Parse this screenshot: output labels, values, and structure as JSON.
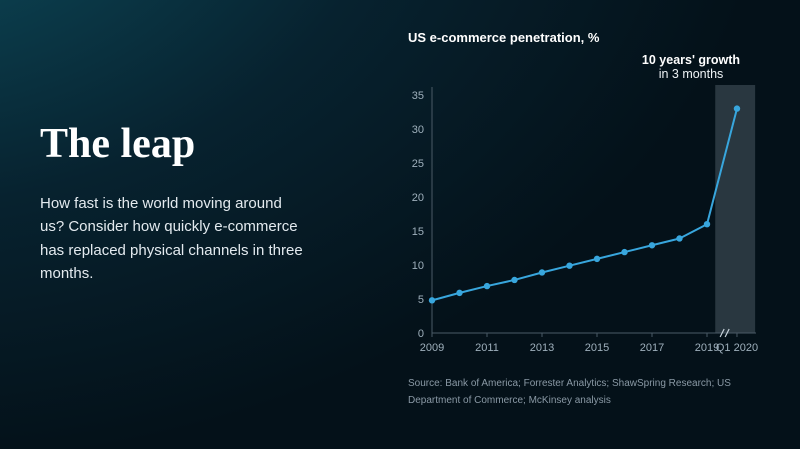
{
  "slide": {
    "title": "The leap",
    "body": "How fast is the world moving around us? Consider how quickly e-commerce has replaced physical channels in three months.",
    "source": "Source: Bank of America; Forrester Analytics; ShawSpring Research; US Department of Commerce; McKinsey analysis"
  },
  "chart": {
    "title": "US e-commerce penetration, %",
    "annotation_line1": "10 years' growth",
    "annotation_line2": "in 3 months"
  },
  "chart_data": {
    "type": "line",
    "title": "US e-commerce penetration, %",
    "categories": [
      "2009",
      "2010",
      "2011",
      "2012",
      "2013",
      "2014",
      "2015",
      "2016",
      "2017",
      "2018",
      "2019",
      "Q1 2020"
    ],
    "values": [
      4.8,
      5.9,
      6.9,
      7.8,
      8.9,
      9.9,
      10.9,
      11.9,
      12.9,
      13.9,
      16.0,
      33.0
    ],
    "ylim": [
      0,
      35
    ],
    "yticks": [
      0,
      5,
      10,
      15,
      20,
      25,
      30,
      35
    ],
    "xtick_labels": [
      "2009",
      "2011",
      "2013",
      "2015",
      "2017",
      "2019",
      "Q1 2020"
    ],
    "xtick_indices": [
      0,
      2,
      4,
      6,
      8,
      10,
      11
    ],
    "axis_break_between": [
      "2019",
      "Q1 2020"
    ],
    "highlight_band": {
      "from_index": 10.3,
      "to_index": 11.75,
      "label_line1": "10 years' growth",
      "label_line2": "in 3 months"
    },
    "grid": false,
    "legend": false,
    "line_color": "#38a6dd"
  },
  "colors": {
    "background_dark": "#051c2c",
    "background_glow": "#10525e",
    "accent_line": "#38a6dd",
    "highlight_band_fill": "rgba(174,192,205,0.22)",
    "text_primary": "#ffffff",
    "text_muted": "#8a99a5",
    "axis": "#4a5a66"
  }
}
